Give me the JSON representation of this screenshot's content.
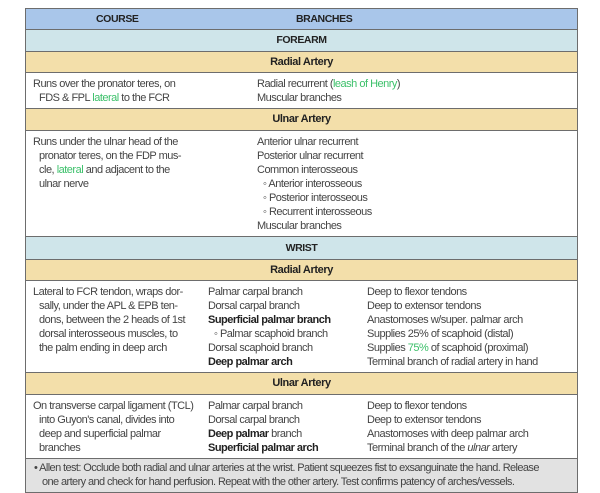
{
  "header": {
    "course": "COURSE",
    "branches": "BRANCHES"
  },
  "forearm": {
    "title": "FOREARM",
    "radial": {
      "title": "Radial Artery",
      "course": [
        "Runs over the pronator teres, on",
        "FDS & FPL ",
        "lateral",
        " to the FCR"
      ],
      "branches": {
        "b1_pre": "Radial recurrent (",
        "b1_green": "leash of Henry",
        "b1_post": ")",
        "b2": "Muscular branches"
      }
    },
    "ulnar": {
      "title": "Ulnar Artery",
      "course": [
        "Runs under the ulnar head  of the",
        "pronator teres, on  the FDP mus-",
        "cle, ",
        "lateral",
        " and adjacent to the",
        "ulnar nerve"
      ],
      "branches": [
        "Anterior ulnar recurrent",
        "Posterior ulnar recurrent",
        "Common interosseous",
        "Anterior interosseous",
        "Posterior interosseous",
        "Recurrent interosseous",
        "Muscular branches"
      ]
    }
  },
  "wrist": {
    "title": "WRIST",
    "radial": {
      "title": "Radial Artery",
      "course": [
        "Lateral to FCR tendon, wraps dor-",
        "sally, under the APL & EPB ten-",
        "dons, between the 2 heads of 1st",
        "dorsal interosseous muscles, to",
        "the palm ending in deep arch"
      ],
      "branches": [
        "Palmar carpal branch",
        "Dorsal carpal branch",
        "Superficial palmar branch",
        "Palmar scaphoid branch",
        "Dorsal scaphoid branch",
        "Deep palmar arch"
      ],
      "notes": [
        "Deep to flexor tendons",
        "Deep to extensor tendons",
        "Anastomoses w/super. palmar arch",
        "Supplies 25% of scaphoid (distal)",
        "Supplies ",
        "75%",
        " of scaphoid (proximal)",
        "Terminal branch of radial artery in hand"
      ]
    },
    "ulnar": {
      "title": "Ulnar Artery",
      "course": [
        "On transverse carpal ligament (TCL)",
        "into Guyon's canal, divides into",
        "deep and superficial palmar",
        "branches"
      ],
      "branches": [
        "Palmar carpal branch",
        "Dorsal carpal branch",
        "Deep palmar",
        " branch",
        "Superficial palmar arch"
      ],
      "notes": [
        "Deep to flexor tendons",
        "Deep to extensor tendons",
        "Anastomoses with deep palmar arch",
        "Terminal branch of the ",
        "ulnar",
        " artery"
      ]
    }
  },
  "note": {
    "bullet": "•",
    "line1": "Allen test: Occlude both radial and ulnar arteries at the wrist. Patient squeezes fist to exsanguinate the hand. Release",
    "line2": "one artery and check for hand perfusion. Repeat with the other artery. Test confirms patency of arches/vessels."
  },
  "colors": {
    "header": "#a9c6ea",
    "section": "#cfe5ea",
    "artery": "#f3dfaa",
    "highlight": "#3cc06a",
    "note": "#e2e2e2"
  }
}
